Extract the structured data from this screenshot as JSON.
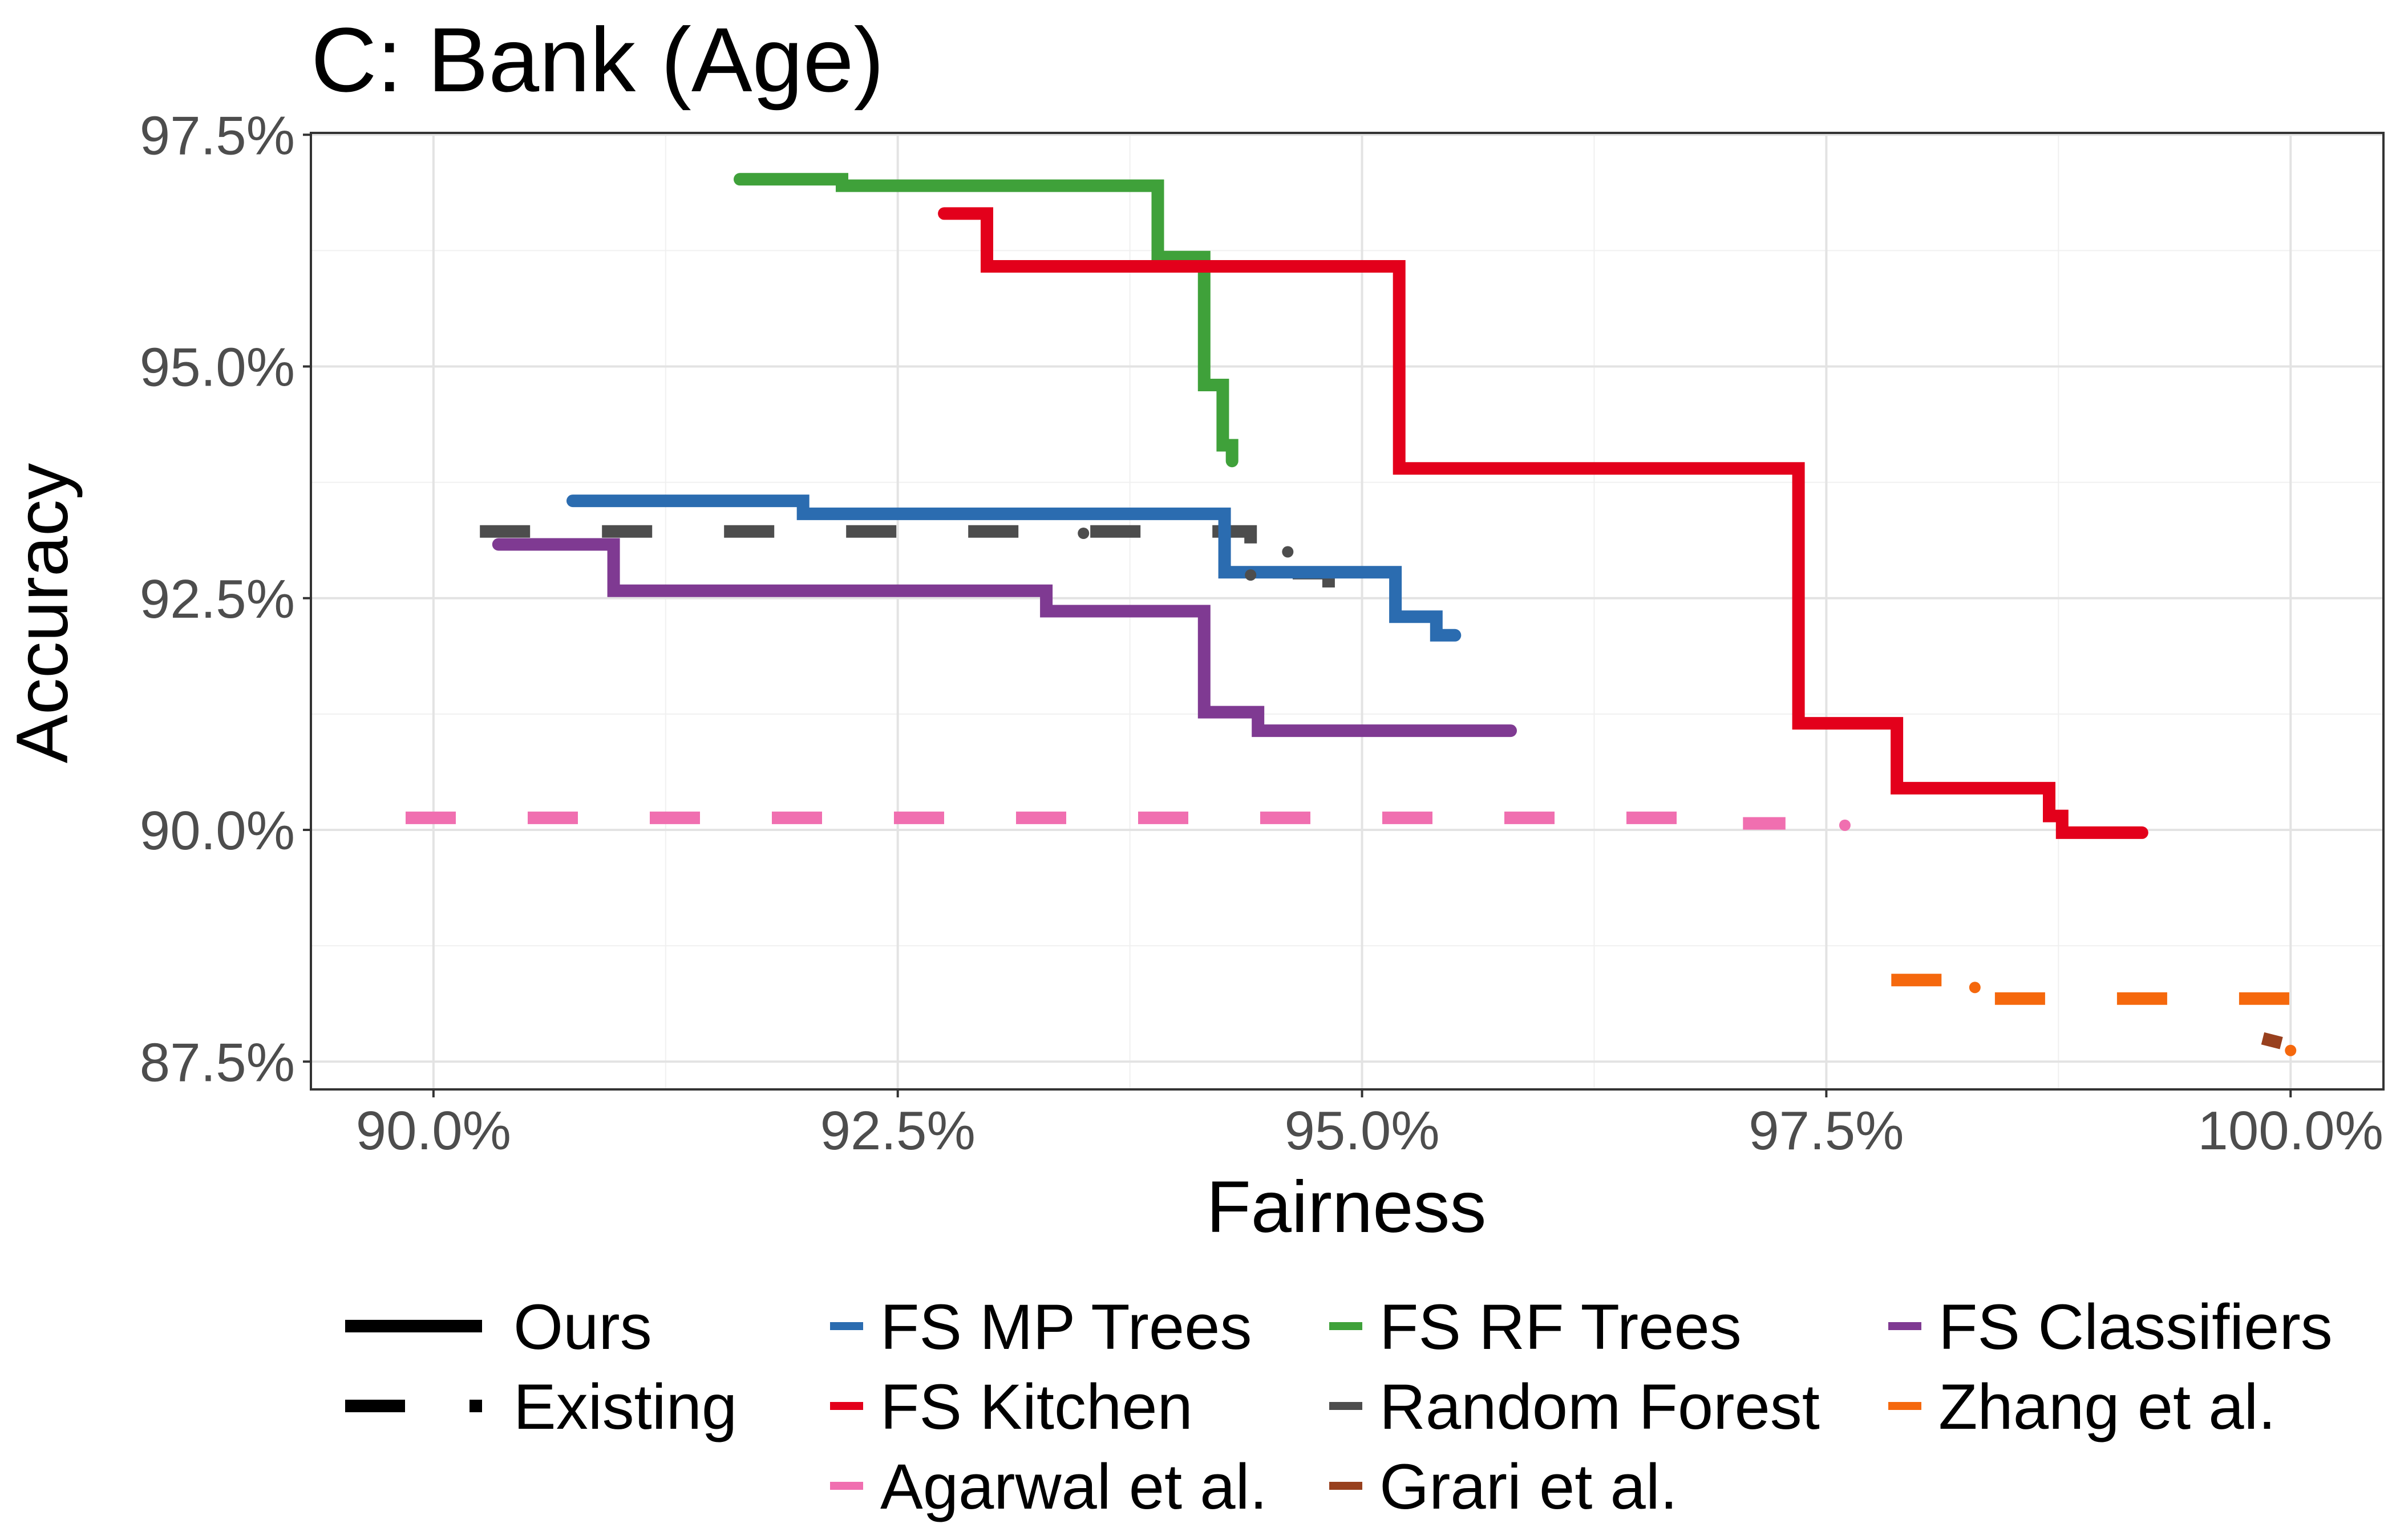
{
  "chart_data": {
    "type": "line",
    "title": "C: Bank (Age)",
    "xlabel": "Fairness",
    "ylabel": "Accuracy",
    "xlim": [
      89.34,
      100.5
    ],
    "ylim": [
      87.2,
      97.52
    ],
    "x_ticks": [
      {
        "value": 90.0,
        "label": "90.0%"
      },
      {
        "value": 92.5,
        "label": "92.5%"
      },
      {
        "value": 95.0,
        "label": "95.0%"
      },
      {
        "value": 97.5,
        "label": "97.5%"
      },
      {
        "value": 100.0,
        "label": "100.0%"
      }
    ],
    "y_ticks": [
      {
        "value": 87.5,
        "label": "87.5%"
      },
      {
        "value": 90.0,
        "label": "90.0%"
      },
      {
        "value": 92.5,
        "label": "92.5%"
      },
      {
        "value": 95.0,
        "label": "95.0%"
      },
      {
        "value": 97.5,
        "label": "97.5%"
      }
    ],
    "grid": true,
    "legend_position": "bottom",
    "linetype_legend": [
      {
        "name": "Ours",
        "style": "solid"
      },
      {
        "name": "Existing",
        "style": "dashed"
      }
    ],
    "series": [
      {
        "name": "FS MP Trees",
        "color": "#2b6cb0",
        "style": "solid",
        "points": [
          [
            90.75,
            93.55
          ],
          [
            91.99,
            93.55
          ],
          [
            91.99,
            93.41
          ],
          [
            94.26,
            93.41
          ],
          [
            94.26,
            92.78
          ],
          [
            95.18,
            92.78
          ],
          [
            95.18,
            92.3
          ],
          [
            95.4,
            92.3
          ],
          [
            95.4,
            92.1
          ],
          [
            95.5,
            92.1
          ]
        ]
      },
      {
        "name": "FS Kitchen",
        "color": "#e3001b",
        "style": "solid",
        "points": [
          [
            92.75,
            96.65
          ],
          [
            92.98,
            96.65
          ],
          [
            92.98,
            96.08
          ],
          [
            95.2,
            96.08
          ],
          [
            95.2,
            93.9
          ],
          [
            97.35,
            93.9
          ],
          [
            97.35,
            91.15
          ],
          [
            97.88,
            91.15
          ],
          [
            97.88,
            90.45
          ],
          [
            98.7,
            90.45
          ],
          [
            98.7,
            90.15
          ],
          [
            98.77,
            90.15
          ],
          [
            98.77,
            89.97
          ],
          [
            99.2,
            89.97
          ]
        ]
      },
      {
        "name": "FS RF Trees",
        "color": "#3fa13a",
        "style": "solid",
        "points": [
          [
            91.65,
            97.02
          ],
          [
            92.2,
            97.02
          ],
          [
            92.2,
            96.95
          ],
          [
            93.9,
            96.95
          ],
          [
            93.9,
            96.18
          ],
          [
            94.15,
            96.18
          ],
          [
            94.15,
            94.8
          ],
          [
            94.25,
            94.8
          ],
          [
            94.25,
            94.15
          ],
          [
            94.3,
            94.15
          ],
          [
            94.3,
            93.98
          ]
        ]
      },
      {
        "name": "FS Classifiers",
        "color": "#7f3a92",
        "style": "solid",
        "points": [
          [
            90.35,
            93.08
          ],
          [
            90.97,
            93.08
          ],
          [
            90.97,
            92.58
          ],
          [
            93.3,
            92.58
          ],
          [
            93.3,
            92.36
          ],
          [
            94.15,
            92.36
          ],
          [
            94.15,
            91.27
          ],
          [
            94.44,
            91.27
          ],
          [
            94.44,
            91.07
          ],
          [
            95.8,
            91.07
          ]
        ]
      },
      {
        "name": "Random Forest",
        "color": "#4d4d4d",
        "style": "dashed",
        "points": [
          [
            90.25,
            93.22
          ],
          [
            94.4,
            93.22
          ],
          [
            94.4,
            93.05
          ],
          [
            94.48,
            93.05
          ],
          [
            94.48,
            92.77
          ],
          [
            94.82,
            92.77
          ],
          [
            94.82,
            92.5
          ]
        ]
      },
      {
        "name": "Agarwal et al.",
        "color": "#f06fb0",
        "style": "dashed",
        "points": [
          [
            89.85,
            90.13
          ],
          [
            97.05,
            90.13
          ],
          [
            97.05,
            90.07
          ],
          [
            97.28,
            90.07
          ]
        ]
      },
      {
        "name": "Zhang et al.",
        "color": "#f5680d",
        "style": "dashed",
        "points": [
          [
            97.85,
            88.38
          ],
          [
            98.15,
            88.38
          ],
          [
            98.15,
            88.28
          ],
          [
            98.3,
            88.28
          ],
          [
            98.3,
            88.18
          ],
          [
            100.0,
            88.18
          ]
        ]
      },
      {
        "name": "Grari et al.",
        "color": "#98401e",
        "style": "dashed",
        "points": [
          [
            99.85,
            87.75
          ],
          [
            99.95,
            87.7
          ]
        ]
      }
    ],
    "scatter_points": [
      {
        "series": "Agarwal et al.",
        "x": 97.6,
        "y": 90.05,
        "color": "#f06fb0"
      },
      {
        "series": "Random Forest",
        "x": 93.5,
        "y": 93.2,
        "color": "#4d4d4d"
      },
      {
        "series": "Random Forest",
        "x": 94.6,
        "y": 93.0,
        "color": "#4d4d4d"
      },
      {
        "series": "Random Forest",
        "x": 94.4,
        "y": 92.75,
        "color": "#4d4d4d"
      },
      {
        "series": "Zhang et al.",
        "x": 98.3,
        "y": 88.3,
        "color": "#f5680d"
      },
      {
        "series": "Zhang et al.",
        "x": 100.0,
        "y": 87.62,
        "color": "#f5680d"
      },
      {
        "series": "Grari et al.",
        "x": 99.92,
        "y": 87.72,
        "color": "#98401e"
      }
    ],
    "legend_layout": [
      [
        {
          "kind": "line",
          "name": "Ours",
          "style": "solid",
          "color": "#000000"
        },
        {
          "kind": "color",
          "name": "FS MP Trees",
          "color": "#2b6cb0"
        },
        {
          "kind": "color",
          "name": "FS RF Trees",
          "color": "#3fa13a"
        },
        {
          "kind": "color",
          "name": "FS Classifiers",
          "color": "#7f3a92"
        }
      ],
      [
        {
          "kind": "line",
          "name": "Existing",
          "style": "dashed",
          "color": "#000000"
        },
        {
          "kind": "color",
          "name": "FS Kitchen",
          "color": "#e3001b"
        },
        {
          "kind": "color",
          "name": "Random Forest",
          "color": "#4d4d4d"
        },
        {
          "kind": "color",
          "name": "Zhang et al.",
          "color": "#f5680d"
        }
      ],
      [
        null,
        {
          "kind": "color",
          "name": "Agarwal et al.",
          "color": "#f06fb0"
        },
        {
          "kind": "color",
          "name": "Grari et al.",
          "color": "#98401e"
        },
        null
      ]
    ]
  }
}
